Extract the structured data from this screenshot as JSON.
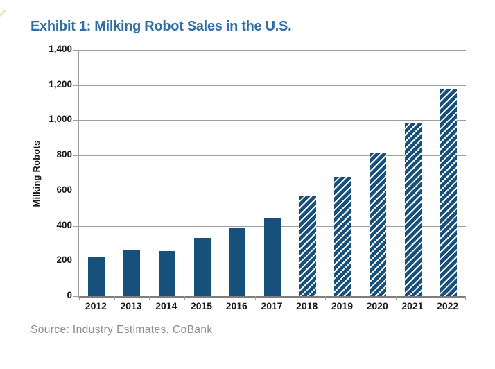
{
  "page": {
    "title": "Exhibit 1: Milking Robot Sales in the U.S.",
    "source": "Source: Industry Estimates, CoBank"
  },
  "colors": {
    "title": "#2F6FA4",
    "bar": "#17517B",
    "gridline": "#9E9E9E",
    "axis": "#7D7D7D",
    "tick_label": "#1A1A1A",
    "source_text": "#8E8E8E",
    "hatch_stripe": "#FFFFFF",
    "corner_mark": "#E6DDA9"
  },
  "chart_data": {
    "type": "bar",
    "title": "Exhibit 1: Milking Robot Sales in the U.S.",
    "xlabel": "",
    "ylabel": "Milking Robots",
    "categories": [
      "2012",
      "2013",
      "2014",
      "2015",
      "2016",
      "2017",
      "2018",
      "2019",
      "2020",
      "2021",
      "2022"
    ],
    "values": [
      220,
      265,
      255,
      330,
      390,
      440,
      570,
      680,
      815,
      985,
      1180
    ],
    "hatched": [
      false,
      false,
      false,
      false,
      false,
      false,
      true,
      true,
      true,
      true,
      true
    ],
    "hatch_style": "white diagonal stripes on 2018-2022 bars",
    "ylim": [
      0,
      1400
    ],
    "yticks": [
      0,
      200,
      400,
      600,
      800,
      1000,
      1200,
      1400
    ],
    "ytick_labels": [
      "0",
      "200",
      "400",
      "600",
      "800",
      "1,000",
      "1,200",
      "1,400"
    ],
    "grid": true,
    "legend": "none"
  }
}
